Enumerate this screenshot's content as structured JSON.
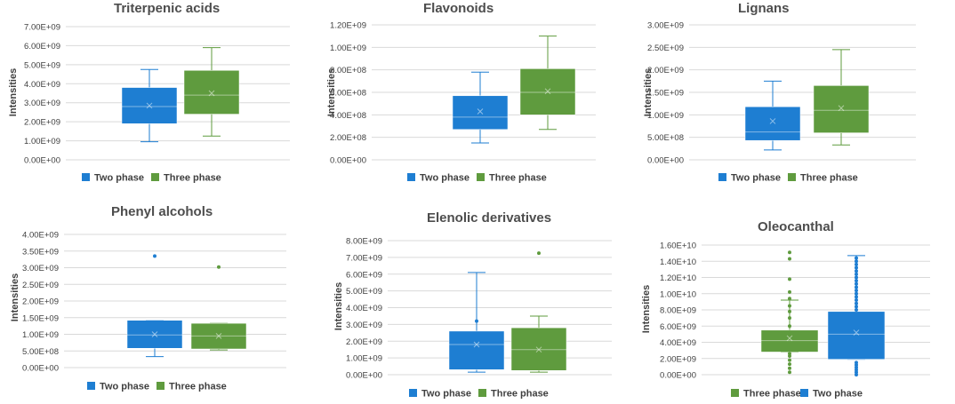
{
  "colors": {
    "two_phase": "#1e7ed2",
    "three_phase": "#5f9b3e",
    "grid": "#d9d9d9",
    "text": "#404040"
  },
  "chart_data": [
    {
      "type": "box",
      "title": "Triterpenic acids",
      "ylabel": "Intensities",
      "ylim": [
        0,
        7000000000
      ],
      "yticks": [
        "0.00E+00",
        "1.00E+09",
        "2.00E+09",
        "3.00E+09",
        "4.00E+09",
        "5.00E+09",
        "6.00E+09",
        "7.00E+09"
      ],
      "legend": "bottom",
      "series": [
        {
          "name": "Two phase",
          "color": "#1e7ed2",
          "min": 950000000,
          "q1": 1900000000,
          "median": 2800000000,
          "q3": 3800000000,
          "max": 4750000000,
          "mean": 2850000000,
          "outliers": []
        },
        {
          "name": "Three phase",
          "color": "#5f9b3e",
          "min": 1250000000,
          "q1": 2400000000,
          "median": 3400000000,
          "q3": 4700000000,
          "max": 5900000000,
          "mean": 3500000000,
          "outliers": []
        }
      ]
    },
    {
      "type": "box",
      "title": "Flavonoids",
      "ylabel": "Intensities",
      "ylim": [
        0,
        1200000000
      ],
      "yticks": [
        "0.00E+00",
        "2.00E+08",
        "4.00E+08",
        "6.00E+08",
        "8.00E+08",
        "1.00E+09",
        "1.20E+09"
      ],
      "legend": "bottom",
      "series": [
        {
          "name": "Two phase",
          "color": "#1e7ed2",
          "min": 150000000,
          "q1": 270000000,
          "median": 380000000,
          "q3": 570000000,
          "max": 780000000,
          "mean": 430000000,
          "outliers": []
        },
        {
          "name": "Three phase",
          "color": "#5f9b3e",
          "min": 270000000,
          "q1": 400000000,
          "median": 600000000,
          "q3": 810000000,
          "max": 1100000000,
          "mean": 610000000,
          "outliers": []
        }
      ]
    },
    {
      "type": "box",
      "title": "Lignans",
      "ylabel": "Intensities",
      "ylim": [
        0,
        3000000000
      ],
      "yticks": [
        "0.00E+00",
        "5.00E+08",
        "1.00E+09",
        "1.50E+09",
        "2.00E+09",
        "2.50E+09",
        "3.00E+09"
      ],
      "legend": "bottom",
      "series": [
        {
          "name": "Two phase",
          "color": "#1e7ed2",
          "min": 220000000,
          "q1": 430000000,
          "median": 620000000,
          "q3": 1180000000,
          "max": 1750000000,
          "mean": 860000000,
          "outliers": []
        },
        {
          "name": "Three phase",
          "color": "#5f9b3e",
          "min": 330000000,
          "q1": 600000000,
          "median": 1100000000,
          "q3": 1650000000,
          "max": 2450000000,
          "mean": 1150000000,
          "outliers": []
        }
      ]
    },
    {
      "type": "box",
      "title": "Phenyl alcohols",
      "ylabel": "Intensities",
      "ylim": [
        0,
        4000000000
      ],
      "yticks": [
        "0.00E+00",
        "5.00E+08",
        "1.00E+09",
        "1.50E+09",
        "2.00E+09",
        "2.50E+09",
        "3.00E+09",
        "3.50E+09",
        "4.00E+09"
      ],
      "legend": "bottom",
      "series": [
        {
          "name": "Two phase",
          "color": "#1e7ed2",
          "min": 330000000,
          "q1": 580000000,
          "median": 980000000,
          "q3": 1420000000,
          "max": 1420000000,
          "mean": 1000000000,
          "outliers": [
            3350000000
          ]
        },
        {
          "name": "Three phase",
          "color": "#5f9b3e",
          "min": 530000000,
          "q1": 560000000,
          "median": 950000000,
          "q3": 1330000000,
          "max": 1330000000,
          "mean": 950000000,
          "outliers": [
            3020000000
          ]
        }
      ]
    },
    {
      "type": "box",
      "title": "Elenolic derivatives",
      "ylabel": "Intensities",
      "ylim": [
        0,
        8000000000
      ],
      "yticks": [
        "0.00E+00",
        "1.00E+09",
        "2.00E+09",
        "3.00E+09",
        "4.00E+09",
        "5.00E+09",
        "6.00E+09",
        "7.00E+09",
        "8.00E+09"
      ],
      "legend": "bottom",
      "series": [
        {
          "name": "Two phase",
          "color": "#1e7ed2",
          "min": 150000000,
          "q1": 300000000,
          "median": 1800000000,
          "q3": 2600000000,
          "max": 6100000000,
          "mean": 1800000000,
          "outliers": [
            3200000000
          ]
        },
        {
          "name": "Three phase",
          "color": "#5f9b3e",
          "min": 150000000,
          "q1": 250000000,
          "median": 1500000000,
          "q3": 2800000000,
          "max": 3500000000,
          "mean": 1500000000,
          "outliers": [
            7250000000
          ]
        }
      ]
    },
    {
      "type": "box",
      "title": "Oleocanthal",
      "ylabel": "Intensities",
      "ylim": [
        0,
        16000000000
      ],
      "yticks": [
        "0.00E+00",
        "2.00E+09",
        "4.00E+09",
        "6.00E+09",
        "8.00E+09",
        "1.00E+10",
        "1.20E+10",
        "1.40E+10",
        "1.60E+10"
      ],
      "legend": "bottom",
      "series": [
        {
          "name": "Three phase",
          "color": "#5f9b3e",
          "min": 2800000000,
          "q1": 2800000000,
          "median": 4200000000,
          "q3": 5500000000,
          "max": 9200000000,
          "mean": 4500000000,
          "outliers": [
            300000000,
            800000000,
            1300000000,
            1800000000,
            2300000000,
            2600000000,
            6000000000,
            7000000000,
            7800000000,
            8500000000,
            9400000000,
            10200000000,
            11800000000,
            14300000000,
            15100000000
          ]
        },
        {
          "name": "Two phase",
          "color": "#1e7ed2",
          "min": 1900000000,
          "q1": 1900000000,
          "median": 5000000000,
          "q3": 7800000000,
          "max": 14700000000,
          "mean": 5200000000,
          "outliers": [
            0,
            300000000,
            600000000,
            900000000,
            1200000000,
            1500000000,
            8000000000,
            8400000000,
            8800000000,
            9200000000,
            9600000000,
            10000000000,
            10400000000,
            10800000000,
            11200000000,
            11600000000,
            12000000000,
            12400000000,
            12800000000,
            13200000000,
            13600000000,
            14000000000,
            14400000000
          ]
        }
      ]
    }
  ]
}
